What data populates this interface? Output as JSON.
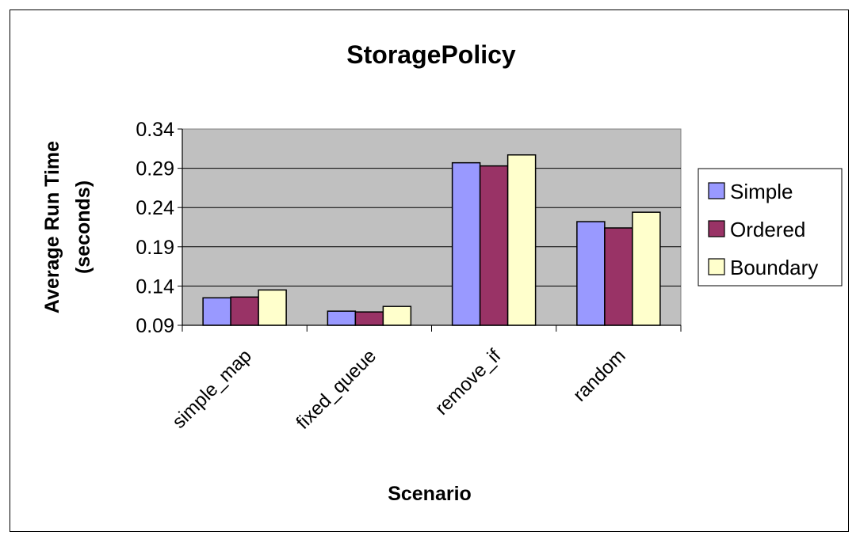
{
  "chart_data": {
    "type": "bar",
    "title": "StoragePolicy",
    "xlabel": "Scenario",
    "ylabel": [
      "Average Run Time",
      "(seconds)"
    ],
    "categories": [
      "simple_map",
      "fixed_queue",
      "remove_if",
      "random"
    ],
    "series": [
      {
        "name": "Simple",
        "color": "#9999ff",
        "values": [
          0.125,
          0.108,
          0.297,
          0.222
        ]
      },
      {
        "name": "Ordered",
        "color": "#993366",
        "values": [
          0.126,
          0.107,
          0.293,
          0.214
        ]
      },
      {
        "name": "Boundary",
        "color": "#ffffcc",
        "values": [
          0.135,
          0.114,
          0.307,
          0.234
        ]
      }
    ],
    "ylim": [
      0.09,
      0.34
    ],
    "yticks": [
      "0.09",
      "0.14",
      "0.19",
      "0.24",
      "0.29",
      "0.34"
    ],
    "grid": true,
    "plot_background": "#c0c0c0",
    "legend_position": "right"
  }
}
